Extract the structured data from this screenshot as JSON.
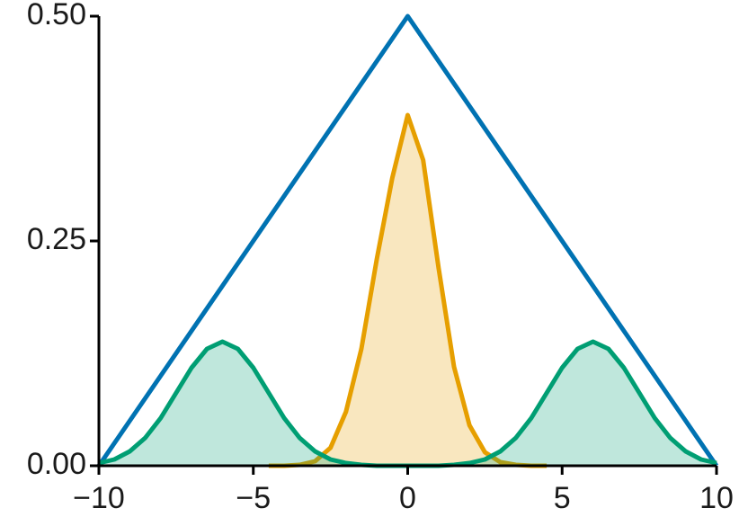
{
  "chart_data": {
    "type": "line",
    "xlim": [
      -10,
      10
    ],
    "ylim": [
      0,
      0.5
    ],
    "xticks": [
      {
        "value": -10,
        "label": "−10"
      },
      {
        "value": -5,
        "label": "−5"
      },
      0,
      5,
      10
    ],
    "yticks": [
      {
        "value": 0,
        "label": "0.00"
      },
      {
        "value": 0.25,
        "label": "0.25"
      },
      {
        "value": 0.5,
        "label": "0.50"
      }
    ],
    "series": [
      {
        "color": "#0072b2",
        "fill": false,
        "x": [
          -10,
          0,
          10
        ],
        "values": [
          0,
          0.5,
          0
        ]
      },
      {
        "color": "#e69f00",
        "fill": true,
        "x": [
          -4.5,
          -4,
          -3.5,
          -3,
          -2.5,
          -2,
          -1.5,
          -1,
          -0.5,
          0,
          0.5,
          1,
          1.5,
          2,
          2.5,
          3,
          3.5,
          4,
          4.5
        ],
        "values": [
          0,
          0,
          0.001,
          0.005,
          0.02,
          0.06,
          0.13,
          0.23,
          0.32,
          0.39,
          0.34,
          0.22,
          0.11,
          0.045,
          0.015,
          0.004,
          0.001,
          0,
          0
        ]
      },
      {
        "color": "#009e73",
        "fill": true,
        "x": [
          -10,
          -9.5,
          -9,
          -8.5,
          -8,
          -7.5,
          -7,
          -6.5,
          -6,
          -5.5,
          -5,
          -4.5,
          -4,
          -3.5,
          -3,
          -2.5,
          -2,
          -1.5,
          -1,
          -0.5,
          0,
          0.5,
          1,
          1.5,
          2,
          2.5,
          3,
          3.5,
          4,
          4.5,
          5,
          5.5,
          6,
          6.5,
          7,
          7.5,
          8,
          8.5,
          9,
          9.5,
          10
        ],
        "values": [
          0.003,
          0.007,
          0.016,
          0.031,
          0.053,
          0.081,
          0.109,
          0.13,
          0.138,
          0.13,
          0.109,
          0.081,
          0.053,
          0.031,
          0.016,
          0.007,
          0.003,
          0.001,
          0,
          0,
          0,
          0,
          0,
          0.001,
          0.003,
          0.007,
          0.016,
          0.031,
          0.053,
          0.081,
          0.109,
          0.13,
          0.138,
          0.13,
          0.109,
          0.081,
          0.053,
          0.031,
          0.016,
          0.007,
          0.003
        ]
      }
    ]
  }
}
